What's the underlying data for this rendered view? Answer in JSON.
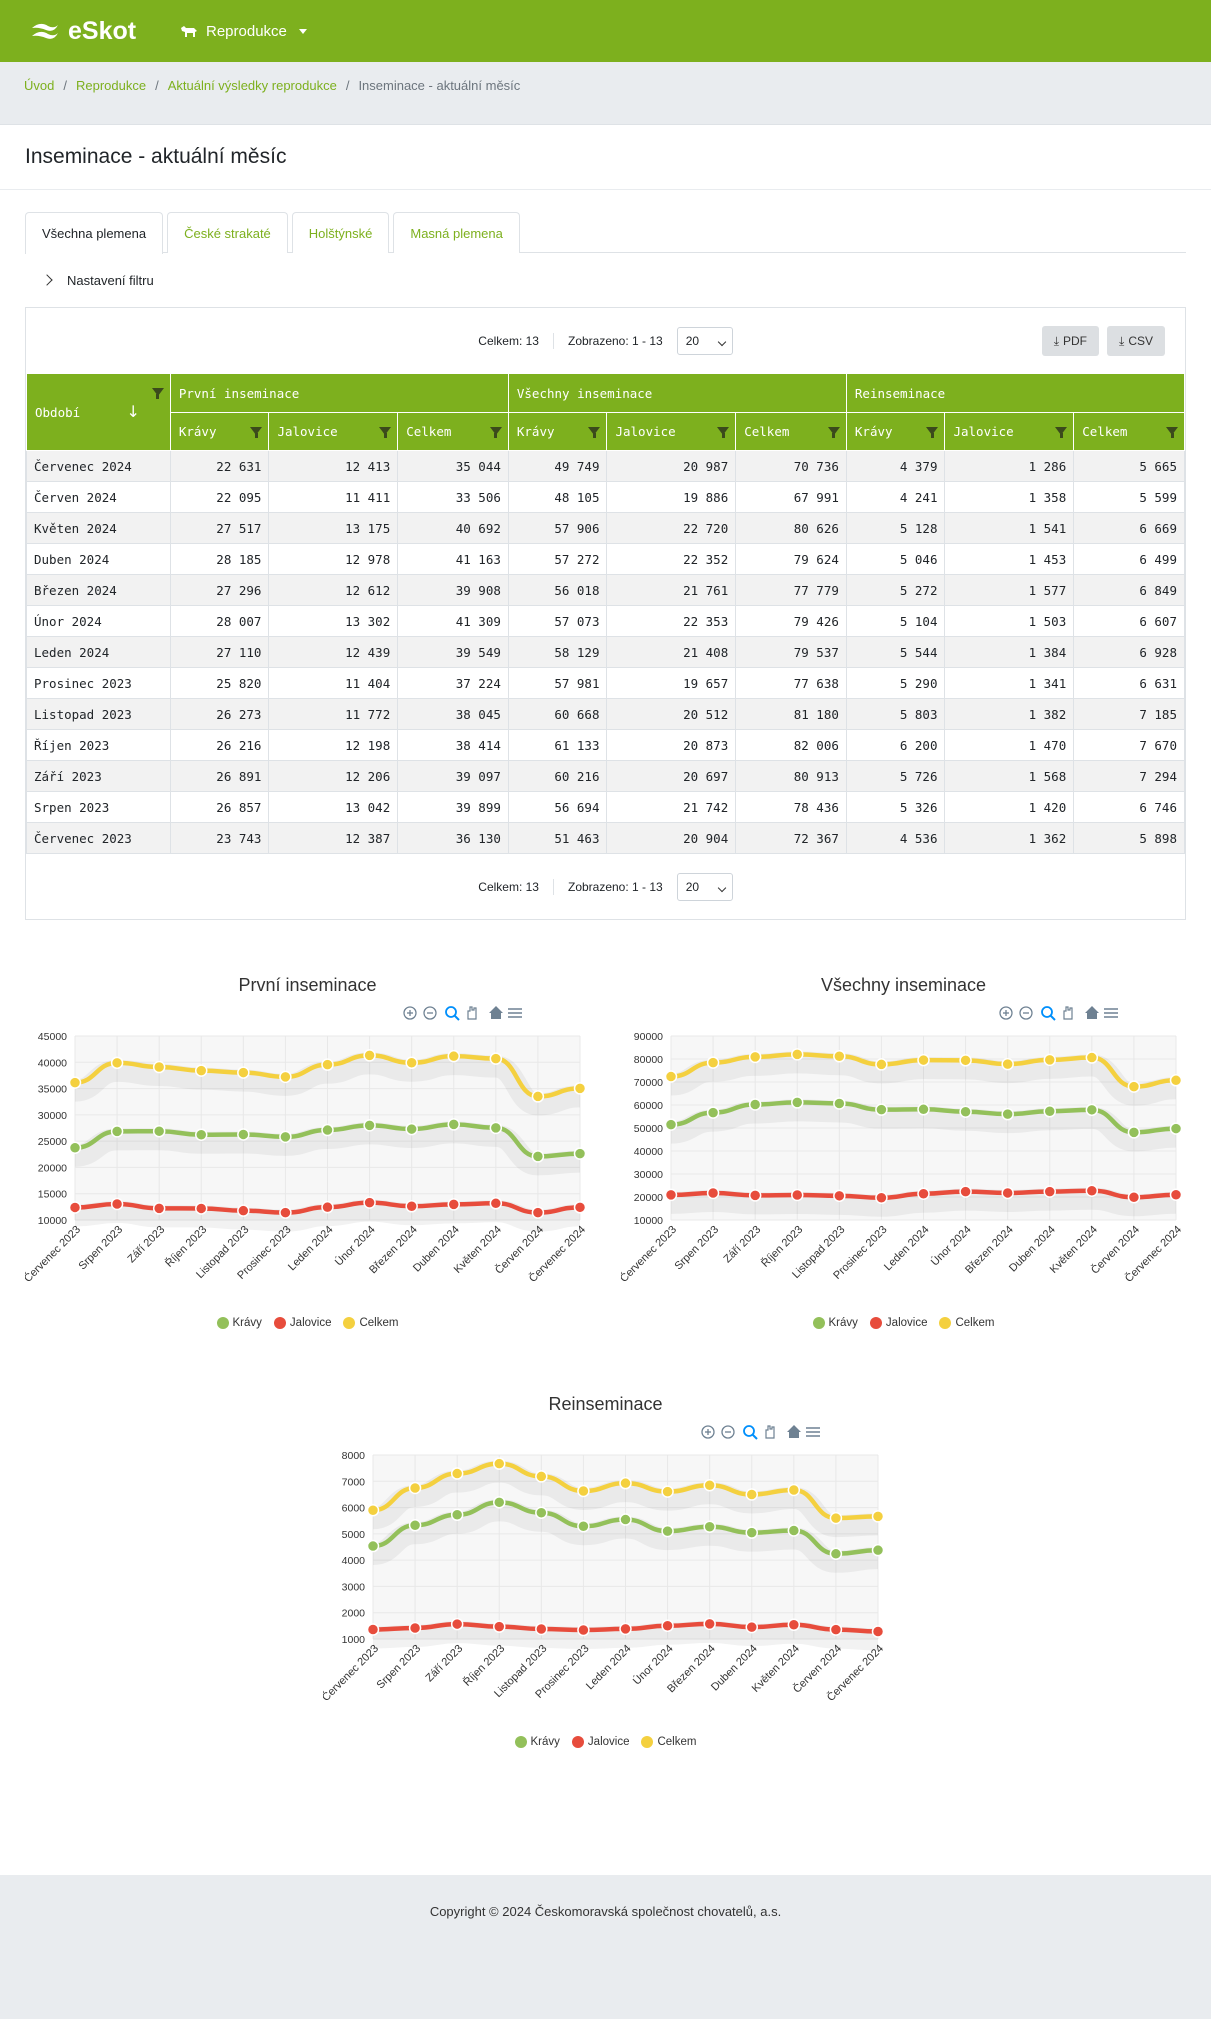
{
  "app": {
    "name": "eSkot",
    "menu": "Reprodukce"
  },
  "breadcrumb": [
    "Úvod",
    "Reprodukce",
    "Aktuální výsledky reprodukce",
    "Inseminace - aktuální měsíc"
  ],
  "page_title": "Inseminace - aktuální měsíc",
  "tabs": [
    "Všechna plemena",
    "České strakaté",
    "Holštýnské",
    "Masná plemena"
  ],
  "filter_label": "Nastavení filtru",
  "pager": {
    "total": "Celkem: 13",
    "shown": "Zobrazeno: 1 - 13",
    "page_size": "20"
  },
  "buttons": {
    "pdf": "PDF",
    "csv": "CSV"
  },
  "table": {
    "period_header": "Období",
    "groups": [
      "První inseminace",
      "Všechny inseminace",
      "Reinseminace"
    ],
    "subheaders": [
      "Krávy",
      "Jalovice",
      "Celkem",
      "Krávy",
      "Jalovice",
      "Celkem",
      "Krávy",
      "Jalovice",
      "Celkem"
    ],
    "rows": [
      [
        "Červenec 2024",
        "22 631",
        "12 413",
        "35 044",
        "49 749",
        "20 987",
        "70 736",
        "4 379",
        "1 286",
        "5 665"
      ],
      [
        "Červen 2024",
        "22 095",
        "11 411",
        "33 506",
        "48 105",
        "19 886",
        "67 991",
        "4 241",
        "1 358",
        "5 599"
      ],
      [
        "Květen 2024",
        "27 517",
        "13 175",
        "40 692",
        "57 906",
        "22 720",
        "80 626",
        "5 128",
        "1 541",
        "6 669"
      ],
      [
        "Duben 2024",
        "28 185",
        "12 978",
        "41 163",
        "57 272",
        "22 352",
        "79 624",
        "5 046",
        "1 453",
        "6 499"
      ],
      [
        "Březen 2024",
        "27 296",
        "12 612",
        "39 908",
        "56 018",
        "21 761",
        "77 779",
        "5 272",
        "1 577",
        "6 849"
      ],
      [
        "Únor 2024",
        "28 007",
        "13 302",
        "41 309",
        "57 073",
        "22 353",
        "79 426",
        "5 104",
        "1 503",
        "6 607"
      ],
      [
        "Leden 2024",
        "27 110",
        "12 439",
        "39 549",
        "58 129",
        "21 408",
        "79 537",
        "5 544",
        "1 384",
        "6 928"
      ],
      [
        "Prosinec 2023",
        "25 820",
        "11 404",
        "37 224",
        "57 981",
        "19 657",
        "77 638",
        "5 290",
        "1 341",
        "6 631"
      ],
      [
        "Listopad 2023",
        "26 273",
        "11 772",
        "38 045",
        "60 668",
        "20 512",
        "81 180",
        "5 803",
        "1 382",
        "7 185"
      ],
      [
        "Říjen 2023",
        "26 216",
        "12 198",
        "38 414",
        "61 133",
        "20 873",
        "82 006",
        "6 200",
        "1 470",
        "7 670"
      ],
      [
        "Září 2023",
        "26 891",
        "12 206",
        "39 097",
        "60 216",
        "20 697",
        "80 913",
        "5 726",
        "1 568",
        "7 294"
      ],
      [
        "Srpen 2023",
        "26 857",
        "13 042",
        "39 899",
        "56 694",
        "21 742",
        "78 436",
        "5 326",
        "1 420",
        "6 746"
      ],
      [
        "Červenec 2023",
        "23 743",
        "12 387",
        "36 130",
        "51 463",
        "20 904",
        "72 367",
        "4 536",
        "1 362",
        "5 898"
      ]
    ]
  },
  "colors": {
    "brand": "#7db01e",
    "kravy": "#93c05a",
    "jalovice": "#e74c3c",
    "celkem": "#f4d03f"
  },
  "chart_data": [
    {
      "type": "line",
      "title": "První inseminace",
      "categories": [
        "Červenec 2023",
        "Srpen 2023",
        "Září 2023",
        "Říjen 2023",
        "Listopad 2023",
        "Prosinec 2023",
        "Leden 2024",
        "Únor 2024",
        "Březen 2024",
        "Duben 2024",
        "Květen 2024",
        "Červen 2024",
        "Červenec 2024"
      ],
      "ylim": [
        10000,
        45000
      ],
      "yticks": [
        10000,
        15000,
        20000,
        25000,
        30000,
        35000,
        40000,
        45000
      ],
      "series": [
        {
          "name": "Krávy",
          "values": [
            23743,
            26857,
            26891,
            26216,
            26273,
            25820,
            27110,
            28007,
            27296,
            28185,
            27517,
            22095,
            22631
          ]
        },
        {
          "name": "Jalovice",
          "values": [
            12387,
            13042,
            12206,
            12198,
            11772,
            11404,
            12439,
            13302,
            12612,
            12978,
            13175,
            11411,
            12413
          ]
        },
        {
          "name": "Celkem",
          "values": [
            36130,
            39899,
            39097,
            38414,
            38045,
            37224,
            39549,
            41309,
            39908,
            41163,
            40692,
            33506,
            35044
          ]
        }
      ]
    },
    {
      "type": "line",
      "title": "Všechny inseminace",
      "categories": [
        "Červenec 2023",
        "Srpen 2023",
        "Září 2023",
        "Říjen 2023",
        "Listopad 2023",
        "Prosinec 2023",
        "Leden 2024",
        "Únor 2024",
        "Březen 2024",
        "Duben 2024",
        "Květen 2024",
        "Červen 2024",
        "Červenec 2024"
      ],
      "ylim": [
        10000,
        90000
      ],
      "yticks": [
        10000,
        20000,
        30000,
        40000,
        50000,
        60000,
        70000,
        80000,
        90000
      ],
      "series": [
        {
          "name": "Krávy",
          "values": [
            51463,
            56694,
            60216,
            61133,
            60668,
            57981,
            58129,
            57073,
            56018,
            57272,
            57906,
            48105,
            49749
          ]
        },
        {
          "name": "Jalovice",
          "values": [
            20904,
            21742,
            20697,
            20873,
            20512,
            19657,
            21408,
            22353,
            21761,
            22352,
            22720,
            19886,
            20987
          ]
        },
        {
          "name": "Celkem",
          "values": [
            72367,
            78436,
            80913,
            82006,
            81180,
            77638,
            79537,
            79426,
            77779,
            79624,
            80626,
            67991,
            70736
          ]
        }
      ]
    },
    {
      "type": "line",
      "title": "Reinseminace",
      "categories": [
        "Červenec 2023",
        "Srpen 2023",
        "Září 2023",
        "Říjen 2023",
        "Listopad 2023",
        "Prosinec 2023",
        "Leden 2024",
        "Únor 2024",
        "Březen 2024",
        "Duben 2024",
        "Květen 2024",
        "Červen 2024",
        "Červenec 2024"
      ],
      "ylim": [
        1000,
        8000
      ],
      "yticks": [
        1000,
        2000,
        3000,
        4000,
        5000,
        6000,
        7000,
        8000
      ],
      "series": [
        {
          "name": "Krávy",
          "values": [
            4536,
            5326,
            5726,
            6200,
            5803,
            5290,
            5544,
            5104,
            5272,
            5046,
            5128,
            4241,
            4379
          ]
        },
        {
          "name": "Jalovice",
          "values": [
            1362,
            1420,
            1568,
            1470,
            1382,
            1341,
            1384,
            1503,
            1577,
            1453,
            1541,
            1358,
            1286
          ]
        },
        {
          "name": "Celkem",
          "values": [
            5898,
            6746,
            7294,
            7670,
            7185,
            6631,
            6928,
            6607,
            6849,
            6499,
            6669,
            5599,
            5665
          ]
        }
      ]
    }
  ],
  "footer": "Copyright © 2024 Českomoravská společnost chovatelů, a.s."
}
